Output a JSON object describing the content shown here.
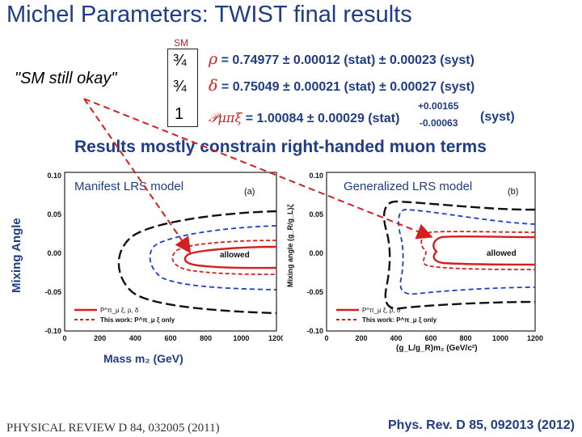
{
  "title": "Michel Parameters:  TWIST final results",
  "sm_label": "SM",
  "sm_values": [
    "¾",
    "¾",
    "1"
  ],
  "quote": "\"SM still okay\"",
  "params": {
    "rho": {
      "symbol": "ρ",
      "text": "= 0.74977 ± 0.00012 (stat) ± 0.00023 (syst)"
    },
    "delta": {
      "symbol": "δ",
      "text": "=  0.75049 ± 0.00021 (stat) ± 0.00027 (syst)"
    },
    "pmu_xi": {
      "symbol": "𝒫μπξ",
      "text": "= 1.00084 ± 0.00029 (stat)",
      "plus": "+0.00165",
      "minus": "-0.00063",
      "syst": "(syst)"
    }
  },
  "subtitle": "Results mostly constrain right-handed muon terms",
  "plot_a": {
    "model_label": "Manifest LRS model",
    "panel": "(a)",
    "y_axis_label": "Mixing Angle",
    "x_axis_label": "Mass m₂ (GeV)",
    "yticks": [
      "0.10",
      "0.05",
      "0.00",
      "-0.05",
      "-0.10"
    ],
    "xticks": [
      "0",
      "200",
      "400",
      "600",
      "800",
      "1000",
      "1200"
    ],
    "region_label": "allowed",
    "legend": [
      "P^π_μ ξ, ρ, δ",
      "This work: P^π_μ ξ only"
    ]
  },
  "plot_b": {
    "model_label": "Generalized LRS model",
    "panel": "(b)",
    "y_axis_label": "Mixing angle (g_R/g_L)ζ",
    "x_axis_label": "(g_L/g_R)m₂ (GeV/c²)",
    "yticks": [
      "0.10",
      "0.05",
      "0.00",
      "-0.05",
      "-0.10"
    ],
    "xticks": [
      "0",
      "200",
      "400",
      "600",
      "800",
      "1000",
      "1200"
    ],
    "region_label": "allowed",
    "legend": [
      "P^π_μ ξ, ρ, δ",
      "This work: P^π_μ ξ only"
    ]
  },
  "references": {
    "left": "PHYSICAL  REVIEW  D 84, 032005 (2011)",
    "right": "Phys. Rev. D 85, 092013 (2012)"
  },
  "colors": {
    "title": "#1f3c87",
    "red": "#d42020",
    "blue": "#1f3cd0",
    "black": "#111111"
  }
}
